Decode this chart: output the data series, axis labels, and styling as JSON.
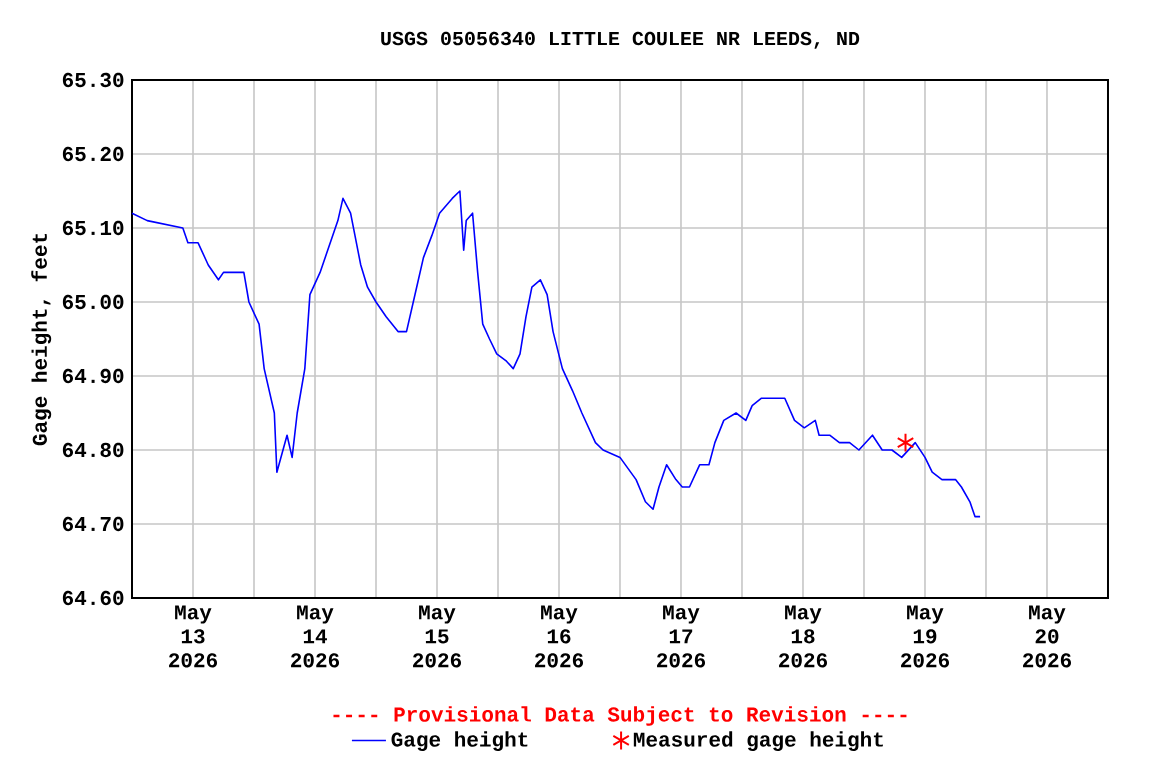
{
  "chart_data": {
    "type": "line",
    "title": "USGS 05056340 LITTLE COULEE NR LEEDS, ND",
    "ylabel": "Gage height, feet",
    "annotations": [
      "---- Provisional Data Subject to Revision ----"
    ],
    "xlim": [
      "2026-05-13T00:00",
      "2026-05-21T00:00"
    ],
    "ylim": [
      64.6,
      65.3
    ],
    "yticks": [
      {
        "value": 64.6,
        "label": "64.60"
      },
      {
        "value": 64.7,
        "label": "64.70"
      },
      {
        "value": 64.8,
        "label": "64.80"
      },
      {
        "value": 64.9,
        "label": "64.90"
      },
      {
        "value": 65.0,
        "label": "65.00"
      },
      {
        "value": 65.1,
        "label": "65.10"
      },
      {
        "value": 65.2,
        "label": "65.20"
      },
      {
        "value": 65.3,
        "label": "65.30"
      }
    ],
    "xticks": [
      {
        "value": "2026-05-13T12:00",
        "label": "May 13 2026"
      },
      {
        "value": "2026-05-14T12:00",
        "label": "May 14 2026"
      },
      {
        "value": "2026-05-15T12:00",
        "label": "May 15 2026"
      },
      {
        "value": "2026-05-16T12:00",
        "label": "May 16 2026"
      },
      {
        "value": "2026-05-17T12:00",
        "label": "May 17 2026"
      },
      {
        "value": "2026-05-18T12:00",
        "label": "May 18 2026"
      },
      {
        "value": "2026-05-19T12:00",
        "label": "May 19 2026"
      },
      {
        "value": "2026-05-20T12:00",
        "label": "May 20 2026"
      },
      {
        "value": "2026-05-14T00:00",
        "label": null
      },
      {
        "value": "2026-05-15T00:00",
        "label": null
      },
      {
        "value": "2026-05-16T00:00",
        "label": null
      },
      {
        "value": "2026-05-17T00:00",
        "label": null
      },
      {
        "value": "2026-05-18T00:00",
        "label": null
      },
      {
        "value": "2026-05-19T00:00",
        "label": null
      },
      {
        "value": "2026-05-20T00:00",
        "label": null
      }
    ],
    "grid": true,
    "legend": "bottom",
    "series": [
      {
        "name": "Gage height",
        "type": "line",
        "color": "#0000ff",
        "marker": "none",
        "line_style": "solid",
        "x": [
          "2026-05-13T00:00",
          "2026-05-13T03:00",
          "2026-05-13T10:00",
          "2026-05-13T11:00",
          "2026-05-13T13:00",
          "2026-05-13T15:00",
          "2026-05-13T17:00",
          "2026-05-13T18:00",
          "2026-05-13T22:00",
          "2026-05-13T23:00",
          "2026-05-14T01:00",
          "2026-05-14T02:00",
          "2026-05-14T04:00",
          "2026-05-14T04:30",
          "2026-05-14T06:30",
          "2026-05-14T07:30",
          "2026-05-14T08:30",
          "2026-05-14T10:00",
          "2026-05-14T11:00",
          "2026-05-14T13:00",
          "2026-05-14T15:00",
          "2026-05-14T16:30",
          "2026-05-14T17:30",
          "2026-05-14T19:00",
          "2026-05-14T21:00",
          "2026-05-14T22:20",
          "2026-05-15T00:00",
          "2026-05-15T02:00",
          "2026-05-15T04:20",
          "2026-05-15T06:00",
          "2026-05-15T08:00",
          "2026-05-15T09:20",
          "2026-05-15T11:00",
          "2026-05-15T12:30",
          "2026-05-15T15:00",
          "2026-05-15T16:30",
          "2026-05-15T17:15",
          "2026-05-15T17:45",
          "2026-05-15T19:00",
          "2026-05-15T20:00",
          "2026-05-15T21:00",
          "2026-05-15T22:20",
          "2026-05-15T23:45",
          "2026-05-16T01:40",
          "2026-05-16T03:00",
          "2026-05-16T04:20",
          "2026-05-16T05:30",
          "2026-05-16T06:40",
          "2026-05-16T08:20",
          "2026-05-16T09:40",
          "2026-05-16T10:50",
          "2026-05-16T12:40",
          "2026-05-16T14:40",
          "2026-05-16T16:30",
          "2026-05-16T19:10",
          "2026-05-16T20:40",
          "2026-05-17T00:00",
          "2026-05-17T03:10",
          "2026-05-17T05:00",
          "2026-05-17T06:30",
          "2026-05-17T07:40",
          "2026-05-17T09:10",
          "2026-05-17T11:00",
          "2026-05-17T12:15",
          "2026-05-17T13:40",
          "2026-05-17T15:40",
          "2026-05-17T17:30",
          "2026-05-17T18:40",
          "2026-05-17T20:25",
          "2026-05-17T22:50",
          "2026-05-18T00:45",
          "2026-05-18T02:00",
          "2026-05-18T03:50",
          "2026-05-18T06:30",
          "2026-05-18T08:25",
          "2026-05-18T10:20",
          "2026-05-18T12:15",
          "2026-05-18T14:25",
          "2026-05-18T15:10",
          "2026-05-18T17:15",
          "2026-05-18T19:10",
          "2026-05-18T21:10",
          "2026-05-18T23:00",
          "2026-05-19T01:40",
          "2026-05-19T03:35",
          "2026-05-19T05:30",
          "2026-05-19T07:25",
          "2026-05-19T10:05",
          "2026-05-19T12:00",
          "2026-05-19T13:25",
          "2026-05-19T15:20",
          "2026-05-19T18:00",
          "2026-05-19T19:10",
          "2026-05-19T20:50",
          "2026-05-19T21:50",
          "2026-05-19T22:50"
        ],
        "values": [
          65.12,
          65.11,
          65.1,
          65.08,
          65.08,
          65.05,
          65.03,
          65.04,
          65.04,
          65.0,
          64.97,
          64.91,
          64.85,
          64.77,
          64.82,
          64.79,
          64.85,
          64.91,
          65.01,
          65.04,
          65.08,
          65.11,
          65.14,
          65.12,
          65.05,
          65.02,
          65.0,
          64.98,
          64.96,
          64.96,
          65.02,
          65.06,
          65.09,
          65.12,
          65.14,
          65.15,
          65.07,
          65.11,
          65.12,
          65.04,
          64.97,
          64.95,
          64.93,
          64.92,
          64.91,
          64.93,
          64.98,
          65.02,
          65.03,
          65.01,
          64.96,
          64.91,
          64.88,
          64.85,
          64.81,
          64.8,
          64.79,
          64.76,
          64.73,
          64.72,
          64.75,
          64.78,
          64.76,
          64.75,
          64.75,
          64.78,
          64.78,
          64.81,
          64.84,
          64.85,
          64.84,
          64.86,
          64.87,
          64.87,
          64.87,
          64.84,
          64.83,
          64.84,
          64.82,
          64.82,
          64.81,
          64.81,
          64.8,
          64.82,
          64.8,
          64.8,
          64.79,
          64.81,
          64.79,
          64.77,
          64.76,
          64.76,
          64.75,
          64.73,
          64.71,
          64.71
        ]
      },
      {
        "name": "Measured gage height",
        "type": "scatter",
        "color": "#ff0000",
        "marker": "cross",
        "x": [
          "2026-05-19T08:10"
        ],
        "values": [
          64.81
        ]
      }
    ]
  }
}
